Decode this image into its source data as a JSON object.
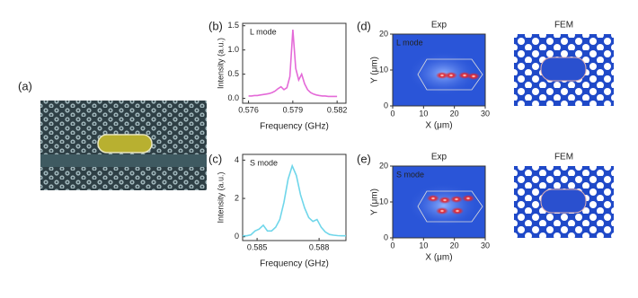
{
  "panel_labels": [
    "(a)",
    "(b)",
    "(c)",
    "(d)",
    "(e)"
  ],
  "chart_data": [
    {
      "type": "line",
      "x_label": "Frequency (GHz)",
      "y_label": "Intensity (a.u.)",
      "x": [
        0.576,
        0.5762,
        0.5764,
        0.5766,
        0.5768,
        0.577,
        0.5772,
        0.5774,
        0.5776,
        0.5778,
        0.578,
        0.5782,
        0.5784,
        0.5786,
        0.5788,
        0.579,
        0.5792,
        0.5794,
        0.5796,
        0.5798,
        0.58,
        0.5802,
        0.5804,
        0.5806,
        0.5808,
        0.581,
        0.5812,
        0.5814,
        0.5816,
        0.5818,
        0.582
      ],
      "series": [
        {
          "name": "L mode",
          "color": "#e46ad8",
          "values": [
            0.05,
            0.05,
            0.06,
            0.06,
            0.07,
            0.08,
            0.09,
            0.1,
            0.12,
            0.15,
            0.2,
            0.24,
            0.18,
            0.22,
            0.45,
            1.42,
            0.62,
            0.38,
            0.5,
            0.3,
            0.18,
            0.12,
            0.09,
            0.07,
            0.06,
            0.05,
            0.05,
            0.04,
            0.04,
            0.04,
            0.04
          ]
        }
      ],
      "xlim": [
        0.5756,
        0.5826
      ],
      "xticks": [
        0.576,
        0.579,
        0.582
      ],
      "ylim": [
        -0.1,
        1.55
      ],
      "yticks": [
        {
          "value": 0,
          "label": "0.0"
        },
        0.5,
        {
          "value": 1,
          "label": "1.0"
        },
        1.5
      ]
    },
    {
      "type": "line",
      "x_label": "Frequency (GHz)",
      "y_label": "Intensity (a.u.)",
      "x": [
        0.5843,
        0.5845,
        0.5847,
        0.5849,
        0.5851,
        0.5853,
        0.5855,
        0.5857,
        0.5859,
        0.5861,
        0.5863,
        0.5865,
        0.5867,
        0.5869,
        0.5871,
        0.5873,
        0.5875,
        0.5877,
        0.5879,
        0.5881,
        0.5883,
        0.5885,
        0.5887,
        0.5889,
        0.5891,
        0.5893
      ],
      "series": [
        {
          "name": "S mode",
          "color": "#6fd6ea",
          "values": [
            0.05,
            0.05,
            0.1,
            0.3,
            0.4,
            0.6,
            0.3,
            0.3,
            0.5,
            0.9,
            1.8,
            3.0,
            3.7,
            3.2,
            2.2,
            1.5,
            1.0,
            0.8,
            0.9,
            0.5,
            0.25,
            0.12,
            0.08,
            0.06,
            0.05,
            0.05
          ]
        }
      ],
      "xlim": [
        0.5843,
        0.5893
      ],
      "xticks": [
        0.585,
        0.588
      ],
      "ylim": [
        -0.2,
        4.3
      ],
      "yticks": [
        0,
        2,
        4
      ]
    }
  ],
  "maps": [
    {
      "title": "Exp",
      "label": "L mode",
      "x_label": "X (μm)",
      "y_label": "Y (μm)",
      "xlim": [
        0,
        30
      ],
      "ylim": [
        0,
        20
      ],
      "xticks": [
        0,
        10,
        20,
        30
      ],
      "yticks": [
        0,
        10,
        20
      ]
    },
    {
      "title": "FEM"
    },
    {
      "title": "Exp",
      "label": "S mode",
      "x_label": "X (μm)",
      "y_label": "Y (μm)",
      "xlim": [
        0,
        30
      ],
      "ylim": [
        0,
        20
      ],
      "xticks": [
        0,
        10,
        20,
        30
      ],
      "yticks": [
        0,
        10,
        20
      ]
    },
    {
      "title": "FEM"
    }
  ]
}
